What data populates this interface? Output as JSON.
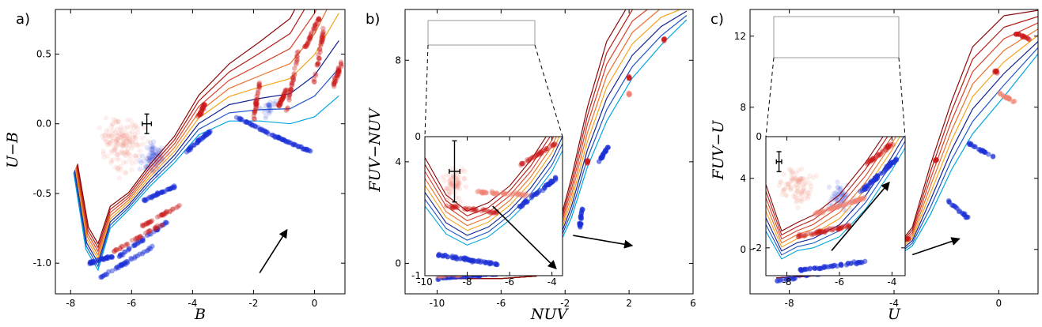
{
  "figure": {
    "type": "scatter-with-model-tracks",
    "colors": {
      "observed_low": "#f08070",
      "observed_high": "#1b2fd6",
      "model_tracks": [
        "#00a6e0",
        "#1f55c8",
        "#13238f",
        "#f7a21a",
        "#e8702a",
        "#d8402b",
        "#b31d16",
        "#8a0808"
      ],
      "arrow": "#000000"
    }
  },
  "chart_data": [
    {
      "panel": "a)",
      "type": "scatter",
      "xlabel": "B",
      "ylabel": "U−B",
      "xlim": [
        -8.5,
        1.0
      ],
      "ylim": [
        0.82,
        -1.22
      ],
      "xticks": [
        "-8",
        "-6",
        "-4",
        "-2",
        "0"
      ],
      "yticks": [
        "-1.0",
        "-0.5",
        "0.0",
        "0.5"
      ],
      "error_bar": {
        "x": -5.5,
        "y": 0.0,
        "dx": 0.15,
        "dy": 0.07
      },
      "arrow": {
        "from": [
          -1.8,
          -1.07
        ],
        "to": [
          -0.9,
          -0.76
        ]
      }
    },
    {
      "panel": "b)",
      "type": "scatter",
      "xlabel": "NUV",
      "ylabel": "FUV−NUV",
      "xlim": [
        -12,
        6
      ],
      "ylim": [
        10,
        -1.2
      ],
      "xticks": [
        "-10",
        "-6",
        "-2",
        "2",
        "6"
      ],
      "yticks": [
        "0",
        "4",
        "8"
      ],
      "error_bar": {
        "x": -7.0,
        "y": 1.1,
        "dx": 0.3,
        "dy": 0.2
      },
      "arrow": {
        "from": [
          -1.5,
          1.1
        ],
        "to": [
          2.2,
          0.7
        ]
      },
      "inset": {
        "xlim": [
          -10,
          -3.5
        ],
        "ylim": [
          0,
          -1
        ],
        "xticks": [
          "-10",
          "-8",
          "-6",
          "-4"
        ],
        "yticks": [
          "-1",
          "0"
        ]
      }
    },
    {
      "panel": "c)",
      "type": "scatter",
      "xlabel": "U",
      "ylabel": "FUV−U",
      "xlim": [
        -9.5,
        1.5
      ],
      "ylim": [
        13.5,
        -2.5
      ],
      "xticks": [
        "-8",
        "-4",
        "0"
      ],
      "yticks": [
        "0",
        "4",
        "8",
        "12"
      ],
      "error_bar": {
        "x": -6.0,
        "y": 1.0,
        "dx": 0.25,
        "dy": 0.15
      },
      "arrow": {
        "from": [
          -3.3,
          -0.3
        ],
        "to": [
          -1.5,
          0.6
        ]
      },
      "inset": {
        "xlim": [
          -8.8,
          -3.5
        ],
        "ylim": [
          0,
          -2.5
        ],
        "xticks": [
          "-8",
          "-6",
          "-4"
        ],
        "yticks": [
          "-2",
          "0"
        ]
      }
    }
  ]
}
